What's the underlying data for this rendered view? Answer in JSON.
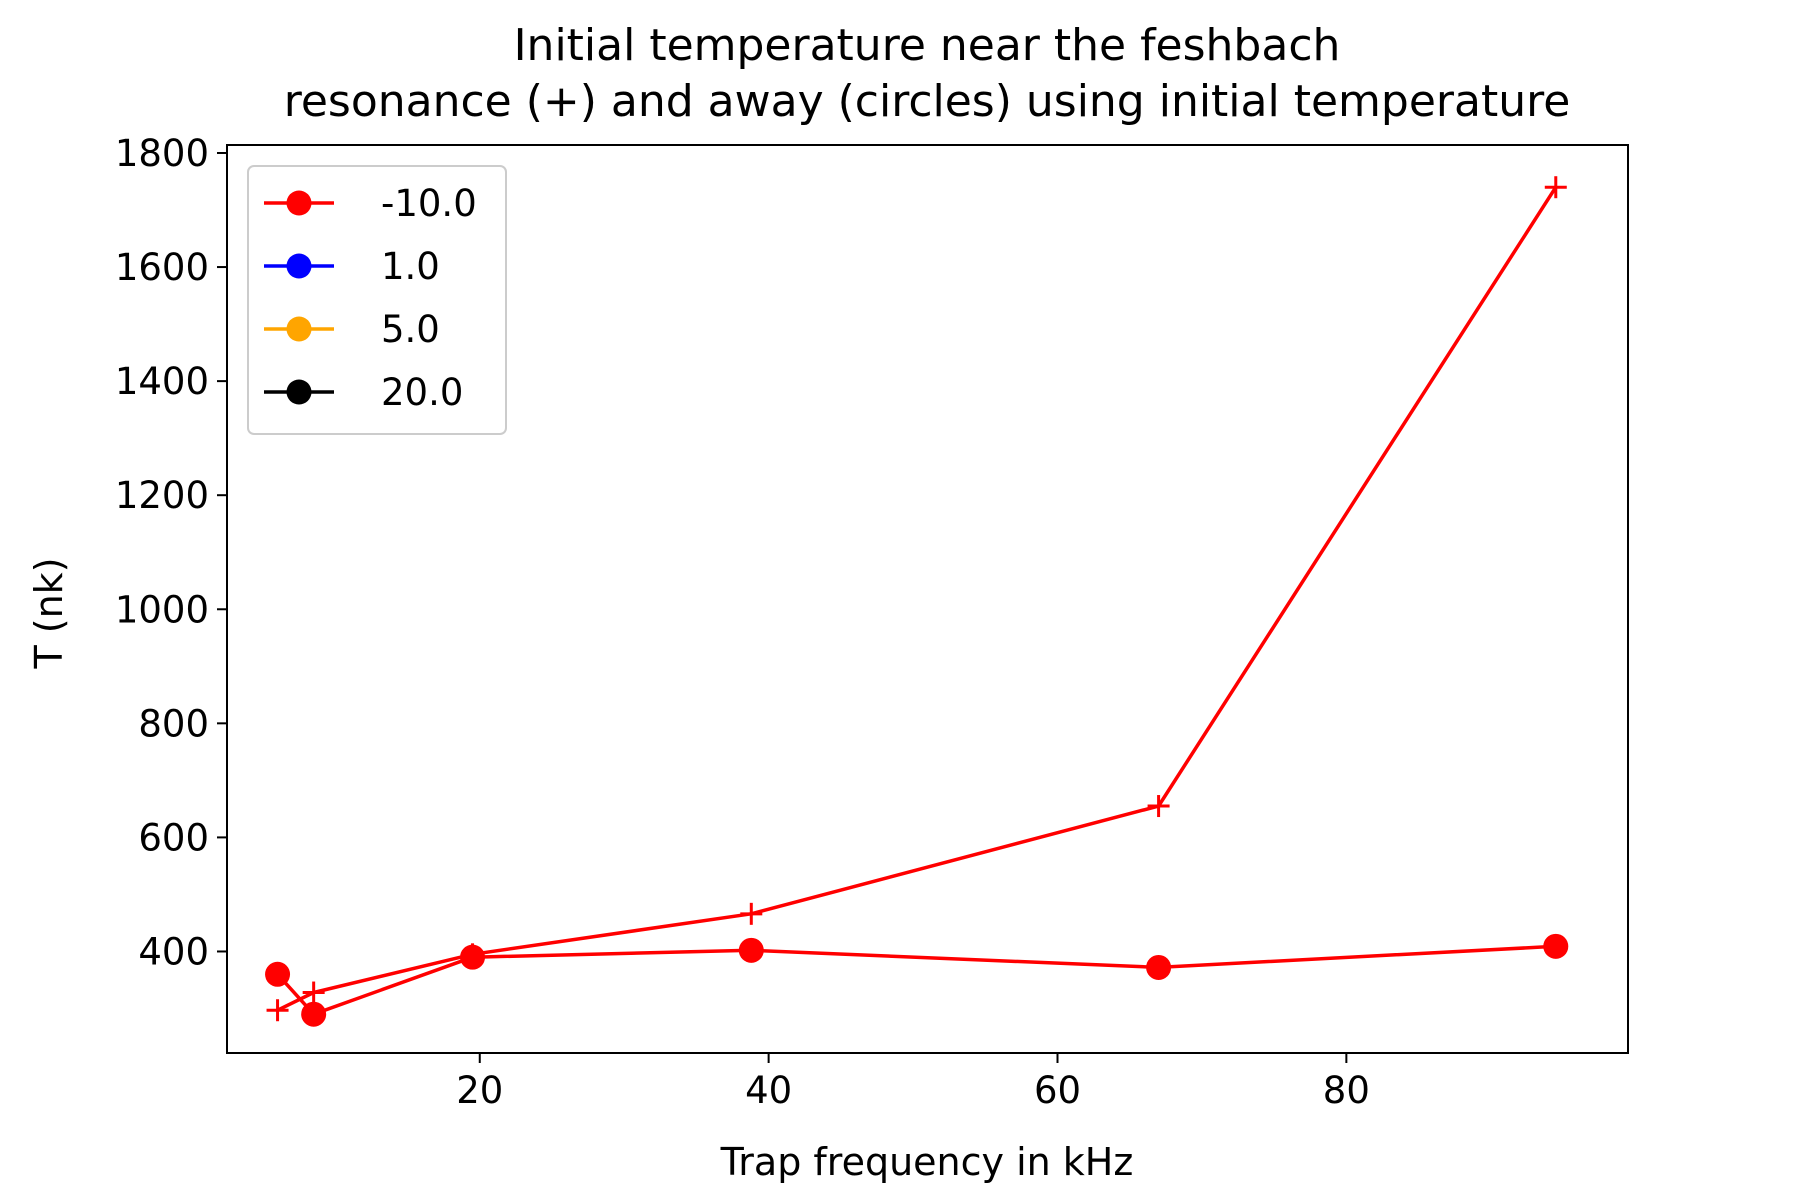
{
  "chart_data": {
    "type": "line",
    "title_lines": [
      "Initial temperature near the feshbach",
      "resonance (+) and away (circles) using initial temperature"
    ],
    "xlabel": "Trap frequency in kHz",
    "ylabel": "T (nk)",
    "xlim": [
      2.5,
      99.5
    ],
    "ylim": [
      222,
      1814
    ],
    "xticks": [
      20,
      40,
      60,
      80
    ],
    "yticks": [
      400,
      600,
      800,
      1000,
      1200,
      1400,
      1600,
      1800
    ],
    "grid": false,
    "legend_position": "upper-left",
    "legend": [
      {
        "label": "-10.0",
        "color": "#ff0000"
      },
      {
        "label": "1.0",
        "color": "#0000ff"
      },
      {
        "label": "5.0",
        "color": "#ffa500"
      },
      {
        "label": "20.0",
        "color": "#000000"
      }
    ],
    "series": [
      {
        "marker": "plus",
        "color": "#ff0000",
        "x": [
          6.0,
          8.5,
          19.5,
          38.8,
          67.0,
          94.5
        ],
        "y": [
          297,
          328,
          395,
          466,
          655,
          1740
        ]
      },
      {
        "marker": "circle",
        "color": "#ff0000",
        "x": [
          6.0,
          8.5,
          19.5,
          38.8,
          67.0,
          94.5
        ],
        "y": [
          360,
          290,
          390,
          402,
          372,
          409
        ]
      }
    ]
  }
}
